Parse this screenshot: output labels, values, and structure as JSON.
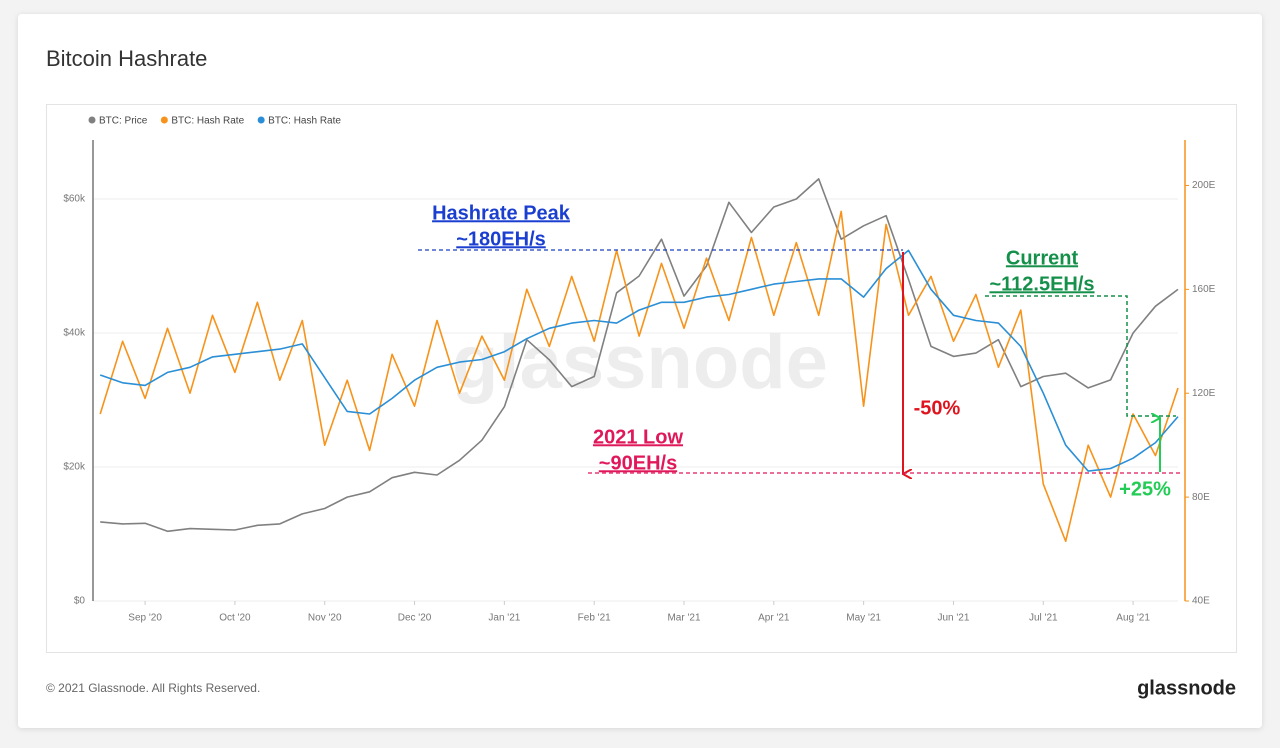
{
  "chart_data": {
    "type": "line",
    "title": "Bitcoin Hashrate",
    "watermark": "glassnode",
    "xlim": [
      -0.58,
      11.5
    ],
    "xticks": [
      {
        "value": 0,
        "label": "Sep '20"
      },
      {
        "value": 1,
        "label": "Oct '20"
      },
      {
        "value": 2,
        "label": "Nov '20"
      },
      {
        "value": 3,
        "label": "Dec '20"
      },
      {
        "value": 4,
        "label": "Jan '21"
      },
      {
        "value": 5,
        "label": "Feb '21"
      },
      {
        "value": 6,
        "label": "Mar '21"
      },
      {
        "value": 7,
        "label": "Apr '21"
      },
      {
        "value": 8,
        "label": "May '21"
      },
      {
        "value": 9,
        "label": "Jun '21"
      },
      {
        "value": 10,
        "label": "Jul '21"
      },
      {
        "value": 11,
        "label": "Aug '21"
      }
    ],
    "ylim": [
      0,
      68800
    ],
    "yticks": [
      {
        "value": 0,
        "label": "$0"
      },
      {
        "value": 20000,
        "label": "$20k"
      },
      {
        "value": 40000,
        "label": "$40k"
      },
      {
        "value": 60000,
        "label": "$60k"
      }
    ],
    "y2lim": [
      40,
      217.5
    ],
    "y2ticks": [
      {
        "value": 40,
        "label": "40E"
      },
      {
        "value": 80,
        "label": "80E"
      },
      {
        "value": 120,
        "label": "120E"
      },
      {
        "value": 160,
        "label": "160E"
      },
      {
        "value": 200,
        "label": "200E"
      }
    ],
    "grid": true,
    "legend": "top-left",
    "x": [
      -0.5,
      -0.25,
      0,
      0.25,
      0.5,
      0.75,
      1,
      1.25,
      1.5,
      1.75,
      2,
      2.25,
      2.5,
      2.75,
      3,
      3.25,
      3.5,
      3.75,
      4,
      4.25,
      4.5,
      4.75,
      5,
      5.25,
      5.5,
      5.75,
      6,
      6.25,
      6.5,
      6.75,
      7,
      7.25,
      7.5,
      7.75,
      8,
      8.25,
      8.5,
      8.75,
      9,
      9.25,
      9.5,
      9.75,
      10,
      10.25,
      10.5,
      10.75,
      11,
      11.25,
      11.5
    ],
    "series": [
      {
        "name": "BTC: Price",
        "color": "#808080",
        "axis": "y",
        "values": [
          11800,
          11500,
          11600,
          10400,
          10800,
          10700,
          10600,
          11300,
          11500,
          13000,
          13800,
          15500,
          16300,
          18400,
          19200,
          18800,
          21000,
          24000,
          29000,
          39000,
          36000,
          32000,
          33500,
          46000,
          48500,
          54000,
          45500,
          50000,
          59500,
          55000,
          58800,
          60000,
          63000,
          54000,
          56000,
          57500,
          48000,
          38000,
          36500,
          37000,
          39000,
          32000,
          33500,
          34000,
          31800,
          33000,
          40000,
          44000,
          46500
        ]
      },
      {
        "name": "BTC: Hash Rate",
        "color": "#f7931a",
        "axis": "y2",
        "values": [
          112,
          140,
          118,
          145,
          120,
          150,
          128,
          155,
          125,
          148,
          100,
          125,
          98,
          135,
          115,
          148,
          120,
          142,
          125,
          160,
          138,
          165,
          140,
          175,
          142,
          170,
          145,
          172,
          148,
          180,
          150,
          178,
          150,
          190,
          115,
          185,
          150,
          165,
          140,
          158,
          130,
          152,
          85,
          63,
          100,
          80,
          112,
          96,
          122
        ]
      },
      {
        "name": "BTC: Hash Rate",
        "color": "#2a8fd6",
        "axis": "y2",
        "values": [
          127,
          124,
          123,
          128,
          130,
          134,
          135,
          136,
          137,
          139,
          126,
          113,
          112,
          118,
          125,
          130,
          132,
          133,
          136,
          141,
          145,
          147,
          148,
          147,
          152,
          155,
          155,
          157,
          158,
          160,
          162,
          163,
          164,
          164,
          157,
          168,
          175,
          160,
          150,
          148,
          147,
          138,
          120,
          100,
          90,
          91,
          95,
          101,
          111
        ]
      }
    ],
    "annotations": [
      "Hashrate Peak",
      "~180EH/s",
      "-50%",
      "2021 Low",
      "~90EH/s",
      "Current",
      "~112.5EH/s",
      "+25%"
    ]
  },
  "footer": {
    "copyright": "© 2021 Glassnode. All Rights Reserved.",
    "logo": "glassnode"
  }
}
